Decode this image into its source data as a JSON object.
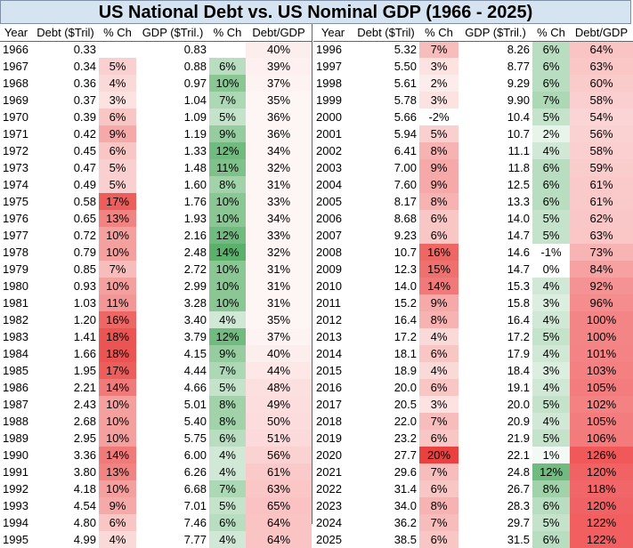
{
  "chart_data": {
    "type": "table",
    "title": "US National Debt vs. US Nominal GDP (1966 - 2025)",
    "columns": [
      "Year",
      "Debt ($Tril)",
      "% Ch",
      "GDP ($Tril.)",
      "% Ch",
      "Debt/GDP"
    ],
    "colors": {
      "pct_red": "#e8413f",
      "pct_green": "#5bb06b",
      "ratio_red": "#f0585a"
    },
    "left_rows": [
      [
        "1966",
        "0.33",
        "",
        "0.83",
        "",
        "40%"
      ],
      [
        "1967",
        "0.34",
        "5%",
        "0.88",
        "6%",
        "39%"
      ],
      [
        "1968",
        "0.36",
        "4%",
        "0.97",
        "10%",
        "37%"
      ],
      [
        "1969",
        "0.37",
        "3%",
        "1.04",
        "7%",
        "35%"
      ],
      [
        "1970",
        "0.39",
        "6%",
        "1.09",
        "5%",
        "36%"
      ],
      [
        "1971",
        "0.42",
        "9%",
        "1.19",
        "9%",
        "36%"
      ],
      [
        "1972",
        "0.45",
        "6%",
        "1.33",
        "12%",
        "34%"
      ],
      [
        "1973",
        "0.47",
        "5%",
        "1.48",
        "11%",
        "32%"
      ],
      [
        "1974",
        "0.49",
        "5%",
        "1.60",
        "8%",
        "31%"
      ],
      [
        "1975",
        "0.58",
        "17%",
        "1.76",
        "10%",
        "33%"
      ],
      [
        "1976",
        "0.65",
        "13%",
        "1.93",
        "10%",
        "34%"
      ],
      [
        "1977",
        "0.72",
        "10%",
        "2.16",
        "12%",
        "33%"
      ],
      [
        "1978",
        "0.79",
        "10%",
        "2.48",
        "14%",
        "32%"
      ],
      [
        "1979",
        "0.85",
        "7%",
        "2.72",
        "10%",
        "31%"
      ],
      [
        "1980",
        "0.93",
        "10%",
        "2.99",
        "10%",
        "31%"
      ],
      [
        "1981",
        "1.03",
        "11%",
        "3.28",
        "10%",
        "31%"
      ],
      [
        "1982",
        "1.20",
        "16%",
        "3.40",
        "4%",
        "35%"
      ],
      [
        "1983",
        "1.41",
        "18%",
        "3.79",
        "12%",
        "37%"
      ],
      [
        "1984",
        "1.66",
        "18%",
        "4.15",
        "9%",
        "40%"
      ],
      [
        "1985",
        "1.95",
        "17%",
        "4.44",
        "7%",
        "44%"
      ],
      [
        "1986",
        "2.21",
        "14%",
        "4.66",
        "5%",
        "48%"
      ],
      [
        "1987",
        "2.43",
        "10%",
        "5.01",
        "8%",
        "49%"
      ],
      [
        "1988",
        "2.68",
        "10%",
        "5.40",
        "8%",
        "50%"
      ],
      [
        "1989",
        "2.95",
        "10%",
        "5.75",
        "6%",
        "51%"
      ],
      [
        "1990",
        "3.36",
        "14%",
        "6.00",
        "4%",
        "56%"
      ],
      [
        "1991",
        "3.80",
        "13%",
        "6.26",
        "4%",
        "61%"
      ],
      [
        "1992",
        "4.18",
        "10%",
        "6.68",
        "7%",
        "63%"
      ],
      [
        "1993",
        "4.54",
        "9%",
        "7.01",
        "5%",
        "65%"
      ],
      [
        "1994",
        "4.80",
        "6%",
        "7.46",
        "6%",
        "64%"
      ],
      [
        "1995",
        "4.99",
        "4%",
        "7.77",
        "4%",
        "64%"
      ]
    ],
    "right_rows": [
      [
        "1996",
        "5.32",
        "7%",
        "8.26",
        "6%",
        "64%"
      ],
      [
        "1997",
        "5.50",
        "3%",
        "8.77",
        "6%",
        "63%"
      ],
      [
        "1998",
        "5.61",
        "2%",
        "9.29",
        "6%",
        "60%"
      ],
      [
        "1999",
        "5.78",
        "3%",
        "9.90",
        "7%",
        "58%"
      ],
      [
        "2000",
        "5.66",
        "-2%",
        "10.4",
        "5%",
        "54%"
      ],
      [
        "2001",
        "5.94",
        "5%",
        "10.7",
        "2%",
        "56%"
      ],
      [
        "2002",
        "6.41",
        "8%",
        "11.1",
        "4%",
        "58%"
      ],
      [
        "2003",
        "7.00",
        "9%",
        "11.8",
        "6%",
        "59%"
      ],
      [
        "2004",
        "7.60",
        "9%",
        "12.5",
        "6%",
        "61%"
      ],
      [
        "2005",
        "8.17",
        "8%",
        "13.3",
        "6%",
        "61%"
      ],
      [
        "2006",
        "8.68",
        "6%",
        "14.0",
        "5%",
        "62%"
      ],
      [
        "2007",
        "9.23",
        "6%",
        "14.7",
        "5%",
        "63%"
      ],
      [
        "2008",
        "10.7",
        "16%",
        "14.6",
        "-1%",
        "73%"
      ],
      [
        "2009",
        "12.3",
        "15%",
        "14.7",
        "0%",
        "84%"
      ],
      [
        "2010",
        "14.0",
        "14%",
        "15.3",
        "4%",
        "92%"
      ],
      [
        "2011",
        "15.2",
        "9%",
        "15.8",
        "3%",
        "96%"
      ],
      [
        "2012",
        "16.4",
        "8%",
        "16.4",
        "4%",
        "100%"
      ],
      [
        "2013",
        "17.2",
        "4%",
        "17.2",
        "5%",
        "100%"
      ],
      [
        "2014",
        "18.1",
        "6%",
        "17.9",
        "4%",
        "101%"
      ],
      [
        "2015",
        "18.9",
        "4%",
        "18.4",
        "3%",
        "103%"
      ],
      [
        "2016",
        "20.0",
        "6%",
        "19.1",
        "4%",
        "105%"
      ],
      [
        "2017",
        "20.5",
        "3%",
        "20.0",
        "5%",
        "102%"
      ],
      [
        "2018",
        "22.0",
        "7%",
        "20.9",
        "4%",
        "105%"
      ],
      [
        "2019",
        "23.2",
        "6%",
        "21.9",
        "5%",
        "106%"
      ],
      [
        "2020",
        "27.7",
        "20%",
        "22.1",
        "1%",
        "126%"
      ],
      [
        "2021",
        "29.6",
        "7%",
        "24.8",
        "12%",
        "120%"
      ],
      [
        "2022",
        "31.4",
        "6%",
        "26.7",
        "8%",
        "118%"
      ],
      [
        "2023",
        "34.0",
        "8%",
        "28.3",
        "6%",
        "120%"
      ],
      [
        "2024",
        "36.2",
        "7%",
        "29.7",
        "5%",
        "122%"
      ],
      [
        "2025",
        "38.5",
        "6%",
        "31.5",
        "6%",
        "122%"
      ]
    ]
  }
}
